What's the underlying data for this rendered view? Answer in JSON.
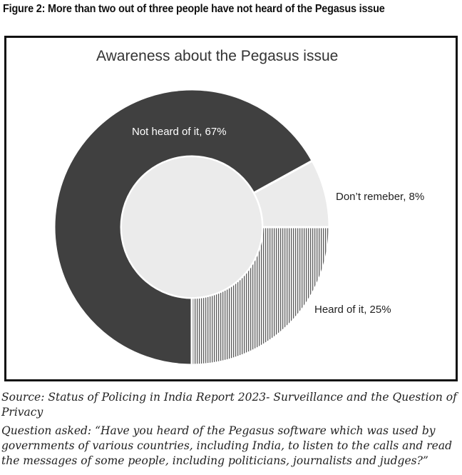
{
  "figure_title": "Figure 2: More than two out of three people have not heard of the Pegasus issue",
  "source_text": "Source: Status of Policing in India Report 2023- Surveillance and the Question of Privacy",
  "question_text": "Question asked: “Have you heard of the Pegasus software which was used by governments of various countries, including India, to listen to the calls and read the messages of some people, including politicians, journalists and judges?”",
  "chart_data": {
    "type": "pie",
    "donut": true,
    "title": "Awareness about the Pegasus issue",
    "slices": [
      {
        "label": "Not heard of it, 67%",
        "value": 67,
        "color": "#404040",
        "pattern": "solid"
      },
      {
        "label": "Don’t remeber, 8%",
        "value": 8,
        "color": "#ebebeb",
        "pattern": "solid"
      },
      {
        "label": "Heard of it, 25%",
        "value": 25,
        "color": "#ffffff",
        "pattern": "vertical-stripes"
      }
    ],
    "legend": "none"
  }
}
